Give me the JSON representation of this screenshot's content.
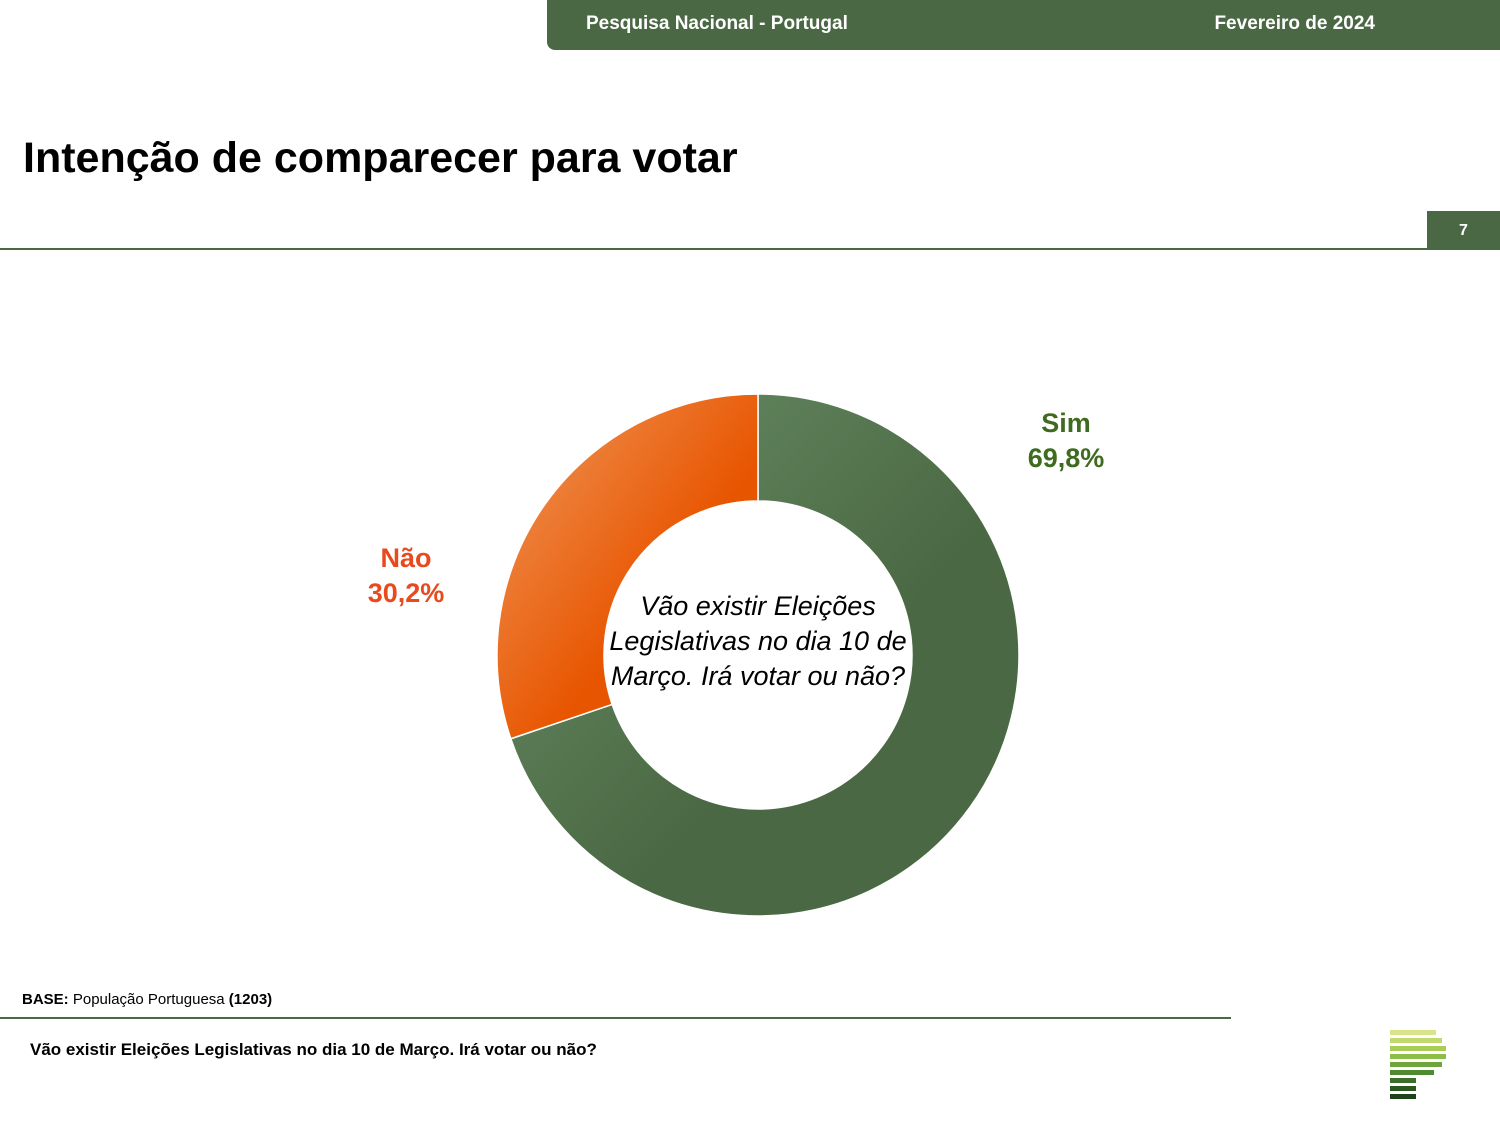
{
  "header": {
    "survey_label": "Pesquisa Nacional - Portugal",
    "date_label": "Fevereiro de 2024"
  },
  "page": {
    "title": "Intenção de comparecer para votar",
    "number": "7"
  },
  "chart_data": {
    "type": "pie",
    "variant": "donut",
    "center_text": "Vão existir Eleições Legislativas no dia 10 de Março. Irá votar ou não?",
    "slices": [
      {
        "label": "Sim",
        "value": 69.8,
        "value_label": "69,8%",
        "color": "#4a6843",
        "color_light": "#6b9068"
      },
      {
        "label": "Não",
        "value": 30.2,
        "value_label": "30,2%",
        "color": "#e85500",
        "color_light": "#f09a5e"
      }
    ]
  },
  "footer": {
    "base_prefix": "BASE:",
    "base_text": "População Portuguesa",
    "base_count": "(1203)",
    "question": "Vão existir Eleições Legislativas no dia 10 de Março. Irá votar ou não?"
  },
  "colors": {
    "brand_green": "#4a6843",
    "accent_orange": "#e8491d",
    "label_green": "#3e6b1f"
  },
  "logo": {
    "icon": "striped-p-logo-icon"
  }
}
